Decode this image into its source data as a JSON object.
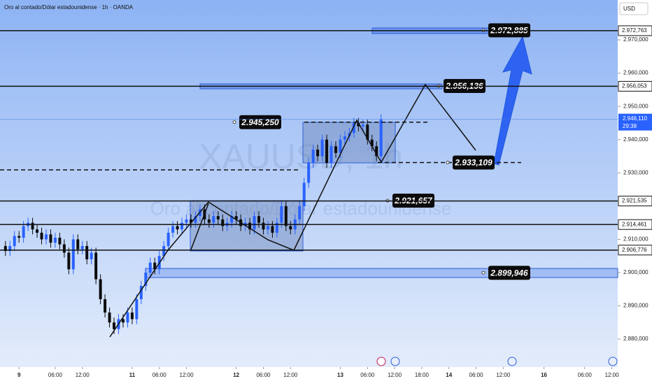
{
  "chart_data": {
    "type": "candlestick",
    "title": "Oro al contado/Dólar estadounidense · 1h · OANDA",
    "watermark": "XAUUSD, 1h",
    "watermark_subtitle": "Oro al contado/Dólar estadounidense",
    "currency": "USD",
    "up_color": "#2962ff",
    "down_color": "#0b0b0b",
    "x": [
      -3,
      -2,
      -1,
      0,
      1,
      2,
      3,
      4,
      5,
      6,
      7,
      8,
      9,
      10,
      11,
      12,
      13,
      14,
      15,
      16,
      17,
      18,
      19,
      20,
      21,
      22,
      23,
      24,
      25,
      26,
      27,
      28,
      29,
      30,
      31,
      32,
      33,
      34,
      35,
      36,
      37,
      38,
      39,
      40,
      41,
      42,
      43,
      44,
      45,
      46,
      47,
      48,
      49,
      50,
      51,
      52,
      53,
      54,
      55,
      56,
      57,
      58,
      59,
      60,
      61,
      62,
      63,
      64,
      65,
      66,
      67,
      68,
      69,
      70,
      71,
      72,
      73,
      74,
      75,
      76,
      77,
      78,
      79,
      80
    ],
    "open": [
      2.908,
      2.9065,
      2.908,
      2.911,
      2.9105,
      2.914,
      2.915,
      2.913,
      2.912,
      2.91,
      2.9115,
      2.909,
      2.9105,
      2.9085,
      2.906,
      2.901,
      2.91,
      2.907,
      2.908,
      2.904,
      2.906,
      2.898,
      2.892,
      2.888,
      2.885,
      2.883,
      2.886,
      2.885,
      2.888,
      2.886,
      2.892,
      2.896,
      2.9,
      2.903,
      2.901,
      2.905,
      2.908,
      2.912,
      2.914,
      2.913,
      2.915,
      2.916,
      2.915,
      2.917,
      2.919,
      2.916,
      2.915,
      2.917,
      2.916,
      2.914,
      2.915,
      2.917,
      2.916,
      2.914,
      2.915,
      2.913,
      2.917,
      2.915,
      2.913,
      2.914,
      2.912,
      2.915,
      2.92,
      2.914,
      2.913,
      2.916,
      2.92,
      2.927,
      2.933,
      2.937,
      2.935,
      2.94,
      2.933,
      2.938,
      2.936,
      2.94,
      2.941,
      2.942,
      2.945,
      2.944,
      2.9445,
      2.94,
      2.938,
      2.935
    ],
    "high": [
      2.9095,
      2.9095,
      2.9125,
      2.9125,
      2.9155,
      2.9165,
      2.9165,
      2.9145,
      2.9135,
      2.913,
      2.913,
      2.912,
      2.912,
      2.91,
      2.9075,
      2.9115,
      2.9115,
      2.9095,
      2.9095,
      2.9075,
      2.9075,
      2.8995,
      2.8935,
      2.8895,
      2.8865,
      2.8875,
      2.8875,
      2.8895,
      2.8895,
      2.8935,
      2.8975,
      2.9015,
      2.9045,
      2.9045,
      2.9065,
      2.9095,
      2.9135,
      2.9155,
      2.9155,
      2.9165,
      2.9175,
      2.9175,
      2.9185,
      2.9205,
      2.9205,
      2.9175,
      2.9185,
      2.9185,
      2.9175,
      2.9165,
      2.9185,
      2.9185,
      2.9175,
      2.9165,
      2.9165,
      2.9185,
      2.9185,
      2.9165,
      2.9155,
      2.9155,
      2.9165,
      2.9215,
      2.9215,
      2.9155,
      2.9175,
      2.9215,
      2.9285,
      2.9345,
      2.9385,
      2.9385,
      2.9415,
      2.9415,
      2.9395,
      2.9395,
      2.9415,
      2.9425,
      2.9435,
      2.9465,
      2.9465,
      2.946,
      2.946,
      2.9415,
      2.9395,
      2.9476
    ],
    "low": [
      2.905,
      2.905,
      2.9065,
      2.909,
      2.909,
      2.9125,
      2.9115,
      2.9105,
      2.9085,
      2.9085,
      2.9075,
      2.9075,
      2.907,
      2.9045,
      2.8995,
      2.8995,
      2.9055,
      2.9055,
      2.9025,
      2.9025,
      2.8965,
      2.8905,
      2.8865,
      2.8835,
      2.8815,
      2.8815,
      2.8835,
      2.8835,
      2.8845,
      2.8845,
      2.8905,
      2.8945,
      2.8985,
      2.8995,
      2.8995,
      2.9035,
      2.9065,
      2.9105,
      2.9115,
      2.9115,
      2.9135,
      2.9135,
      2.9135,
      2.9155,
      2.9145,
      2.9135,
      2.9135,
      2.9145,
      2.9125,
      2.9125,
      2.9135,
      2.9145,
      2.9125,
      2.9125,
      2.9115,
      2.9115,
      2.9135,
      2.9115,
      2.9115,
      2.9105,
      2.9105,
      2.9135,
      2.9125,
      2.9115,
      2.9115,
      2.9145,
      2.9185,
      2.9255,
      2.9315,
      2.9335,
      2.9335,
      2.9315,
      2.9315,
      2.9345,
      2.9345,
      2.9385,
      2.9395,
      2.9405,
      2.9425,
      2.9425,
      2.9385,
      2.9365,
      2.9335,
      2.9335
    ],
    "close": [
      2.9065,
      2.908,
      2.911,
      2.9105,
      2.914,
      2.915,
      2.913,
      2.912,
      2.91,
      2.9115,
      2.909,
      2.9105,
      2.9085,
      2.906,
      2.901,
      2.91,
      2.907,
      2.908,
      2.904,
      2.906,
      2.898,
      2.892,
      2.888,
      2.885,
      2.883,
      2.886,
      2.885,
      2.888,
      2.886,
      2.892,
      2.896,
      2.9,
      2.903,
      2.901,
      2.905,
      2.908,
      2.912,
      2.914,
      2.913,
      2.915,
      2.916,
      2.915,
      2.917,
      2.919,
      2.916,
      2.915,
      2.917,
      2.916,
      2.914,
      2.915,
      2.917,
      2.916,
      2.914,
      2.915,
      2.913,
      2.917,
      2.915,
      2.913,
      2.914,
      2.912,
      2.915,
      2.92,
      2.914,
      2.913,
      2.916,
      2.92,
      2.927,
      2.933,
      2.937,
      2.935,
      2.94,
      2.933,
      2.938,
      2.936,
      2.94,
      2.941,
      2.942,
      2.945,
      2.944,
      2.9445,
      2.94,
      2.938,
      2.935,
      2.9461
    ],
    "xlim": [
      -4.2,
      132.3
    ],
    "ylim": [
      2.8716,
      2.982
    ],
    "xticks": [
      {
        "value": 0,
        "label": "9"
      },
      {
        "value": 8,
        "label": "06:00"
      },
      {
        "value": 14,
        "label": "12:00"
      },
      {
        "value": 25,
        "label": "11"
      },
      {
        "value": 31,
        "label": "06:00"
      },
      {
        "value": 37,
        "label": "12:00"
      },
      {
        "value": 48,
        "label": "12"
      },
      {
        "value": 54,
        "label": "06:00"
      },
      {
        "value": 60,
        "label": "12:00"
      },
      {
        "value": 71,
        "label": "13"
      },
      {
        "value": 77,
        "label": "06:00"
      },
      {
        "value": 83,
        "label": "12:00"
      },
      {
        "value": 89,
        "label": "18:00"
      },
      {
        "value": 95,
        "label": "14"
      },
      {
        "value": 101,
        "label": "06:00"
      },
      {
        "value": 107,
        "label": "12:00"
      },
      {
        "value": 116,
        "label": "16"
      },
      {
        "value": 125,
        "label": "06:00"
      },
      {
        "value": 131,
        "label": "12:00"
      }
    ],
    "yticks": [
      {
        "value": 2.88,
        "label": "2.880,000"
      },
      {
        "value": 2.89,
        "label": "2.890,000"
      },
      {
        "value": 2.9,
        "label": "2.900,000"
      },
      {
        "value": 2.91,
        "label": "2.910,000"
      },
      {
        "value": 2.93,
        "label": "2.930,000"
      },
      {
        "value": 2.94,
        "label": "2.940,000"
      },
      {
        "value": 2.95,
        "label": "2.950,000"
      },
      {
        "value": 2.96,
        "label": "2.960,000"
      },
      {
        "value": 2.97,
        "label": "2.970,000"
      }
    ],
    "price_levels": [
      {
        "value": 2.972763,
        "label": "2.972,763"
      },
      {
        "value": 2.956053,
        "label": "2.956,053"
      },
      {
        "value": 2.921535,
        "label": "2.921,535"
      },
      {
        "value": 2.914461,
        "label": "2.914,461"
      },
      {
        "value": 2.906776,
        "label": "2.906,776"
      }
    ],
    "callouts": [
      {
        "value": 2.972885,
        "label": "2.972,885"
      },
      {
        "value": 2.956136,
        "label": "2.956,136"
      },
      {
        "value": 2.94525,
        "label": "2.945,250"
      },
      {
        "value": 2.933109,
        "label": "2.933,109"
      },
      {
        "value": 2.921657,
        "label": "2.921,657"
      },
      {
        "value": 2.899946,
        "label": "2.899,946"
      }
    ],
    "last_price": {
      "value": 2.94611,
      "label": "2.946,110"
    },
    "countdown": "29:38"
  }
}
